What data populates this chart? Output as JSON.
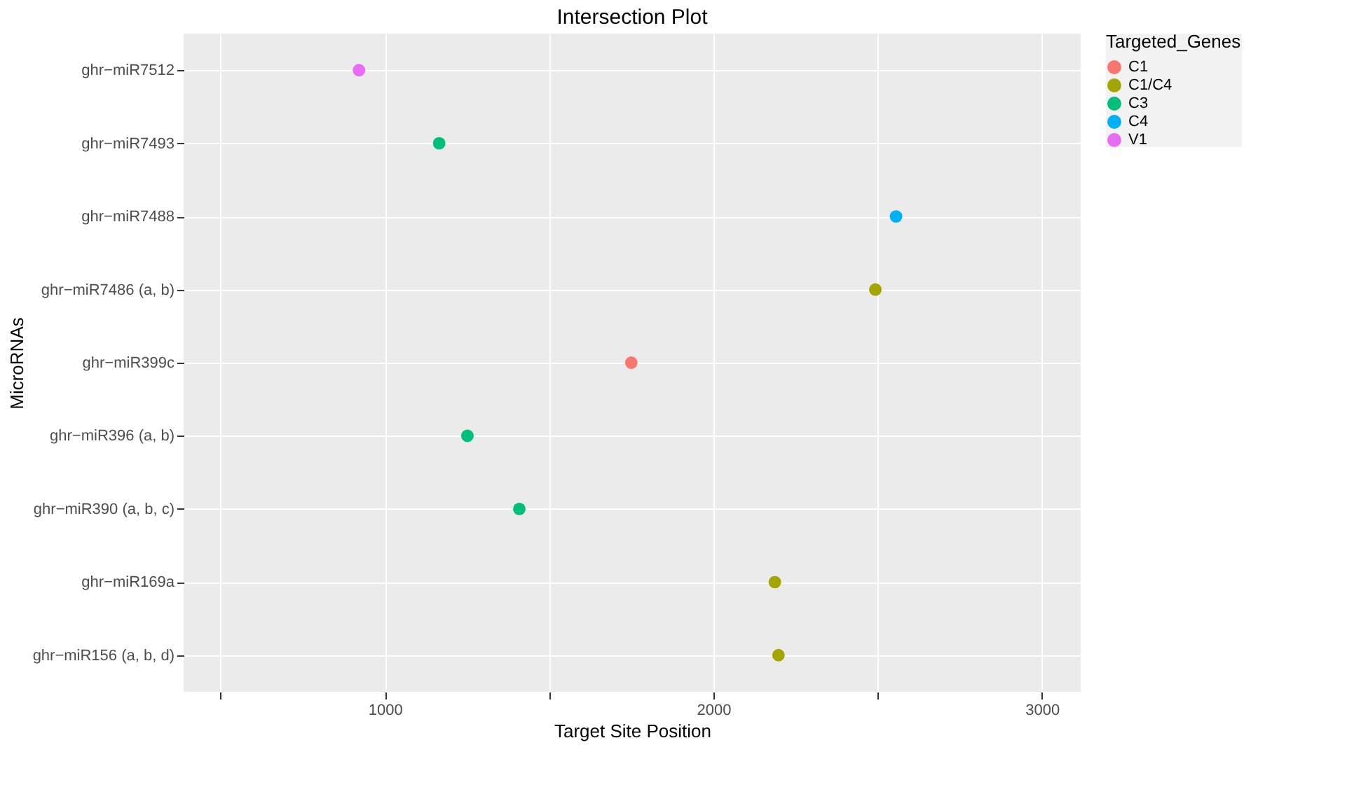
{
  "chart_data": {
    "type": "scatter",
    "orientation": "horizontal",
    "title": "Intersection Plot",
    "xlabel": "Target Site Position",
    "ylabel": "MicroRNAs",
    "legend_title": "Targeted_Genes",
    "legend": "right",
    "grid": true,
    "marker": "circle",
    "categories": [
      "ghr−miR7512",
      "ghr−miR7493",
      "ghr−miR7488",
      "ghr−miR7486 (a, b)",
      "ghr−miR399c",
      "ghr−miR396 (a, b)",
      "ghr−miR390 (a, b, c)",
      "ghr−miR169a",
      "ghr−miR156 (a, b, d)"
    ],
    "xlim": [
      387,
      3118
    ],
    "xticks": [
      {
        "value": 500,
        "label": null
      },
      1000,
      {
        "value": 1500,
        "label": null
      },
      2000,
      {
        "value": 2500,
        "label": null
      },
      3000
    ],
    "series": [
      {
        "name": "C1",
        "color": "#f8766d",
        "values": [
          null,
          null,
          null,
          null,
          1750,
          null,
          null,
          null,
          null
        ]
      },
      {
        "name": "C1/C4",
        "color": "#a3a500",
        "values": [
          null,
          null,
          null,
          2493,
          null,
          null,
          null,
          2187,
          2198
        ]
      },
      {
        "name": "C3",
        "color": "#00bf7d",
        "values": [
          null,
          1165,
          null,
          null,
          null,
          1251,
          1409,
          null,
          null
        ]
      },
      {
        "name": "C4",
        "color": "#00b0f6",
        "values": [
          null,
          null,
          2556,
          null,
          null,
          null,
          null,
          null,
          null
        ]
      },
      {
        "name": "V1",
        "color": "#e76bf3",
        "values": [
          921,
          null,
          null,
          null,
          null,
          null,
          null,
          null,
          null
        ]
      }
    ]
  }
}
